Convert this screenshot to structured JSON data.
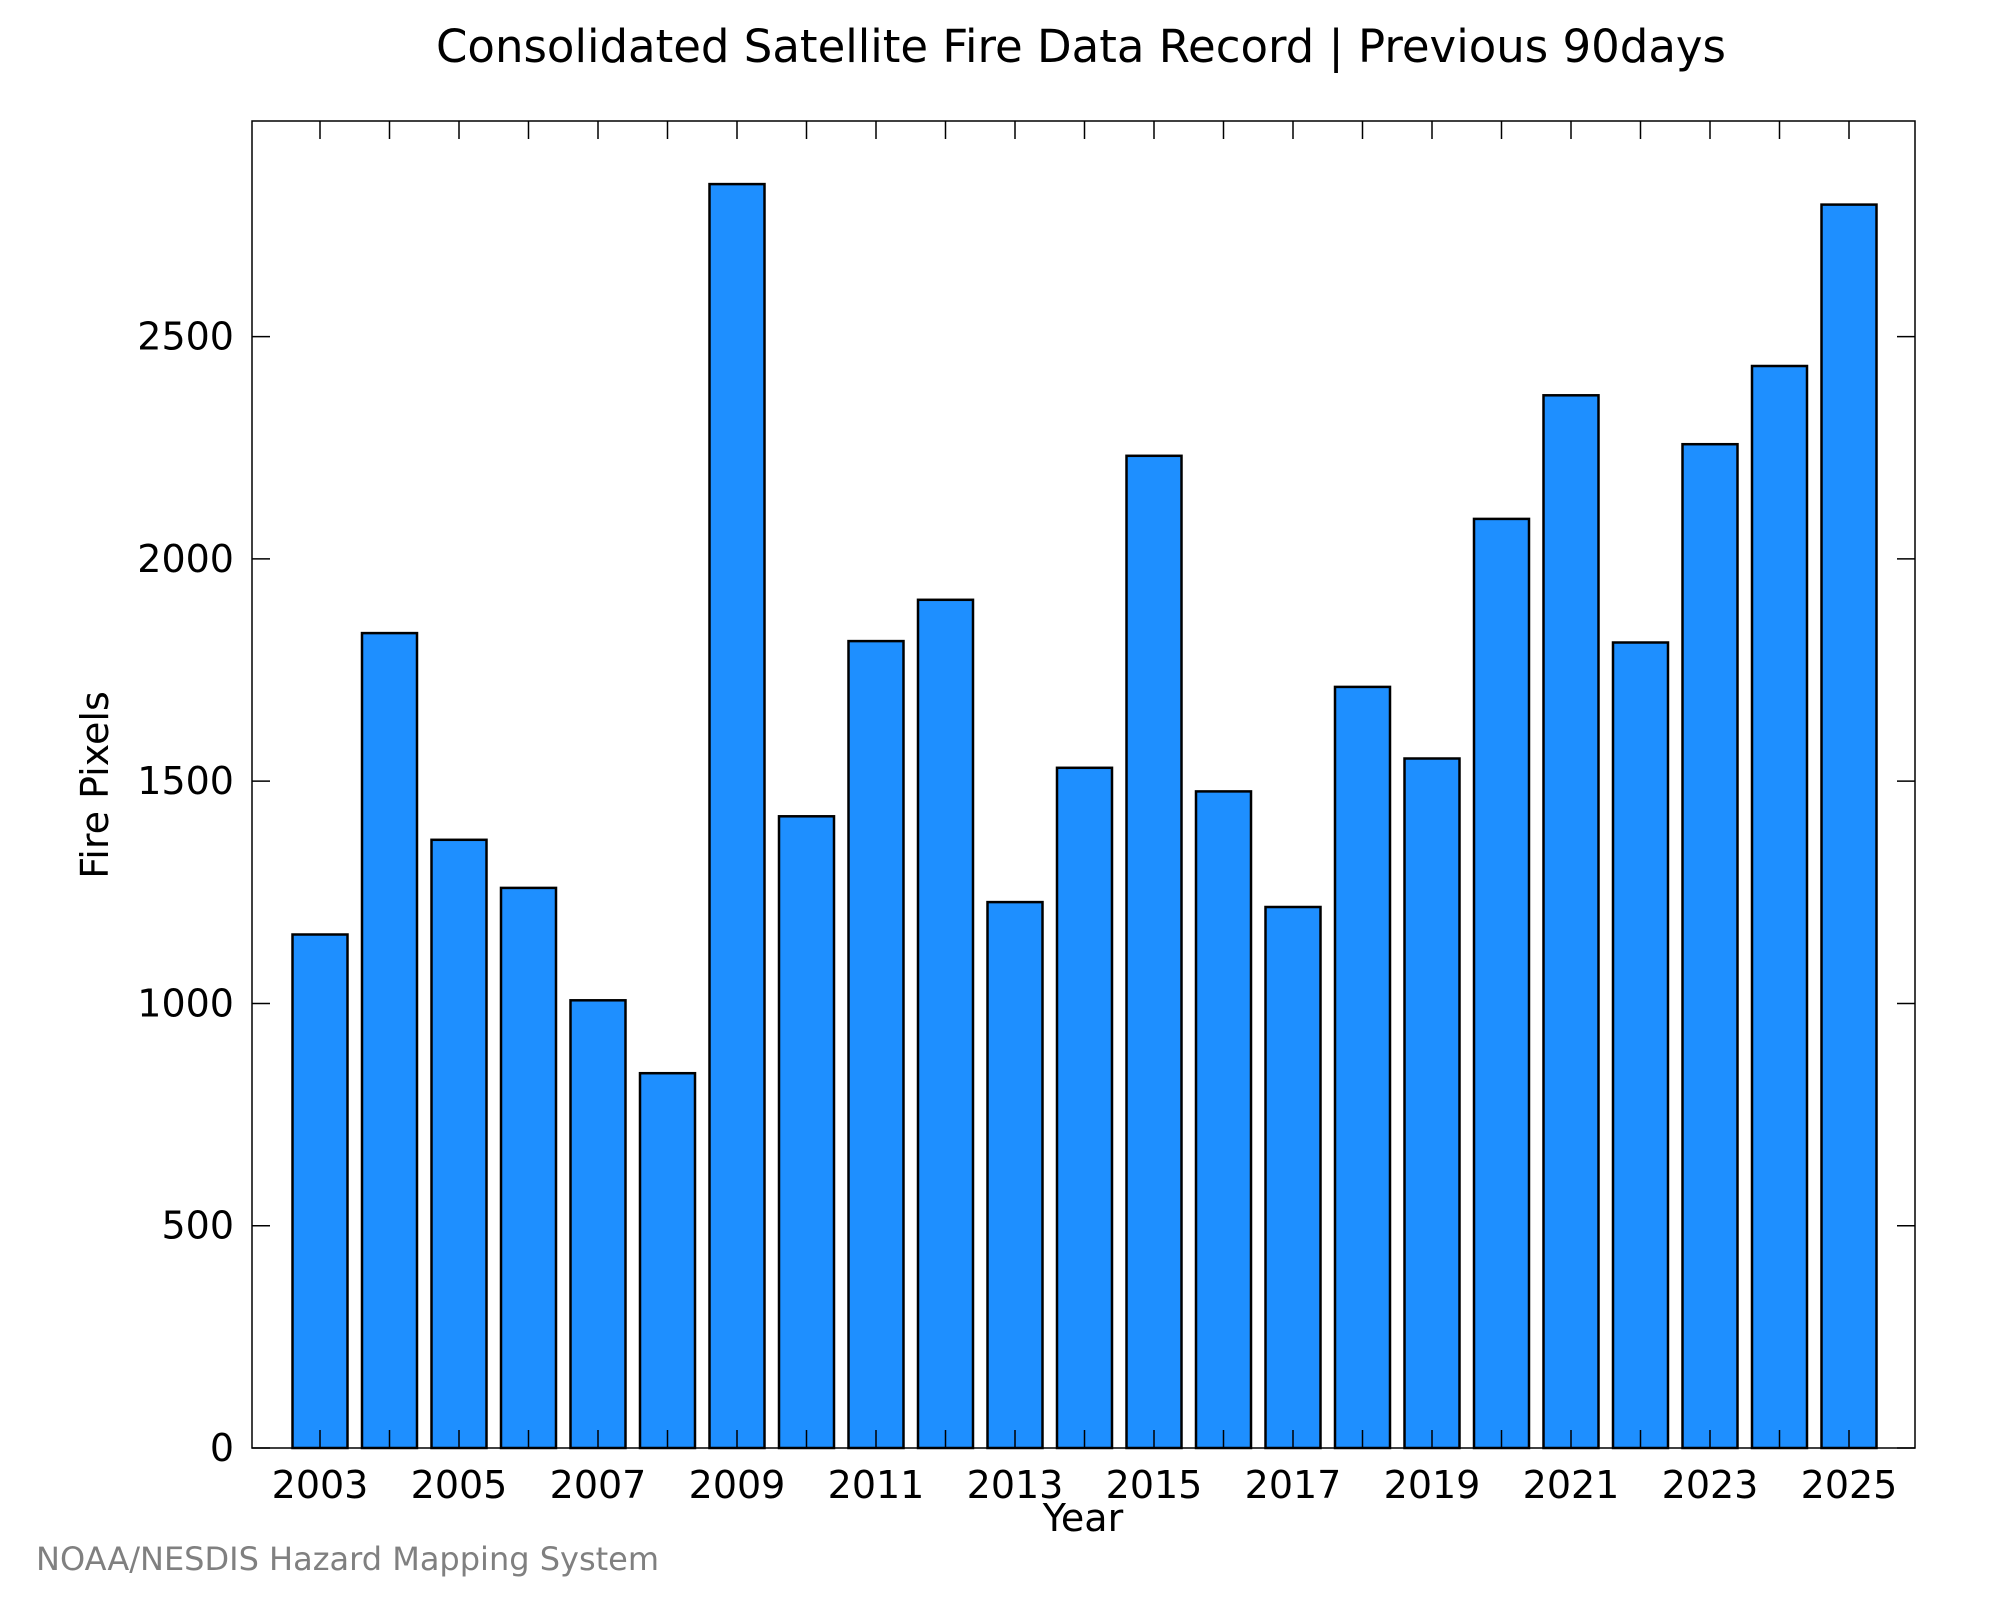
{
  "chart_data": {
    "type": "bar",
    "title": "Consolidated Satellite Fire Data Record | Previous 90days",
    "xlabel": "Year",
    "ylabel": "Fire Pixels",
    "categories": [
      "2003",
      "2004",
      "2005",
      "2006",
      "2007",
      "2008",
      "2009",
      "2010",
      "2011",
      "2012",
      "2013",
      "2014",
      "2015",
      "2016",
      "2017",
      "2018",
      "2019",
      "2020",
      "2021",
      "2022",
      "2023",
      "2024",
      "2025"
    ],
    "values": [
      1155,
      1833,
      1368,
      1260,
      1007,
      843,
      2843,
      1421,
      1815,
      1908,
      1228,
      1530,
      2232,
      1477,
      1217,
      1712,
      1551,
      2090,
      2368,
      1812,
      2258,
      2434,
      2797
    ],
    "x_tick_labels": [
      "2003",
      "2005",
      "2007",
      "2009",
      "2011",
      "2013",
      "2015",
      "2017",
      "2019",
      "2021",
      "2023",
      "2025"
    ],
    "y_ticks": [
      0,
      500,
      1000,
      1500,
      2000,
      2500
    ],
    "ylim": [
      0,
      2985
    ],
    "grid": false,
    "legend": "none",
    "bar_color": "#1e8fff",
    "bar_edge_color": "#000000"
  },
  "footer": {
    "credit": "NOAA/NESDIS Hazard Mapping System"
  }
}
